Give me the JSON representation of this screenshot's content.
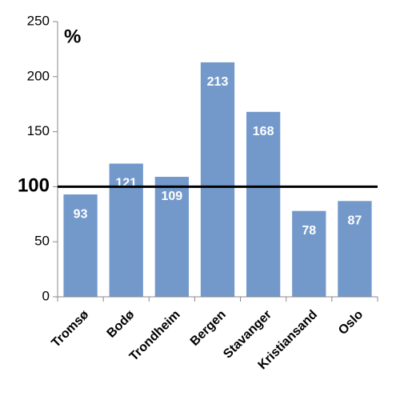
{
  "chart_data": {
    "type": "bar",
    "title": "%",
    "categories": [
      "Tromsø",
      "Bodø",
      "Trondheim",
      "Bergen",
      "Stavanger",
      "Kristiansand",
      "Oslo"
    ],
    "values": [
      93,
      121,
      109,
      213,
      168,
      78,
      87
    ],
    "color": "#7399cb",
    "ylim": [
      0,
      250
    ],
    "yticks": [
      0,
      50,
      100,
      150,
      200,
      250
    ],
    "grid": false,
    "reference_line": 100
  }
}
